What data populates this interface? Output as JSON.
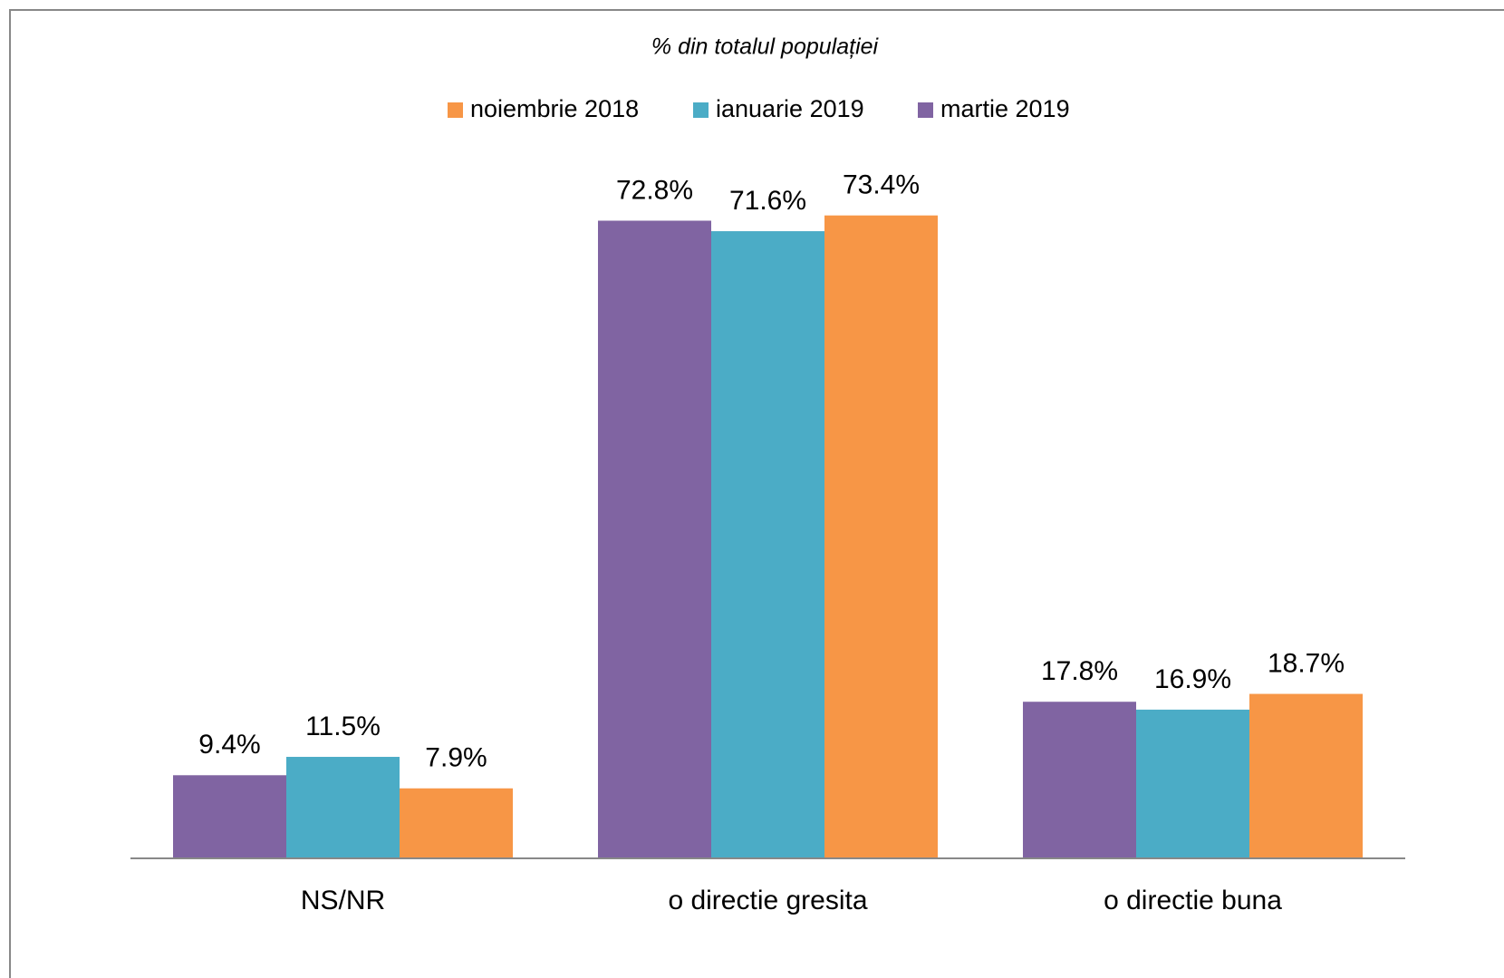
{
  "chart_data": {
    "type": "bar",
    "title": "% din totalul populației",
    "categories": [
      "NS/NR",
      "o directie gresita",
      "o directie buna"
    ],
    "series": [
      {
        "name": "noiembrie 2018",
        "color": "#f79646",
        "values": [
          7.9,
          73.4,
          18.7
        ],
        "value_labels": [
          "7.9%",
          "73.4%",
          "18.7%"
        ]
      },
      {
        "name": "ianuarie 2019",
        "color": "#4bacc6",
        "values": [
          11.5,
          71.6,
          16.9
        ],
        "value_labels": [
          "11.5%",
          "71.6%",
          "16.9%"
        ]
      },
      {
        "name": "martie 2019",
        "color": "#8064a2",
        "values": [
          9.4,
          72.8,
          17.8
        ],
        "value_labels": [
          "9.4%",
          "72.8%",
          "17.8%"
        ]
      }
    ],
    "legend": "top"
  }
}
